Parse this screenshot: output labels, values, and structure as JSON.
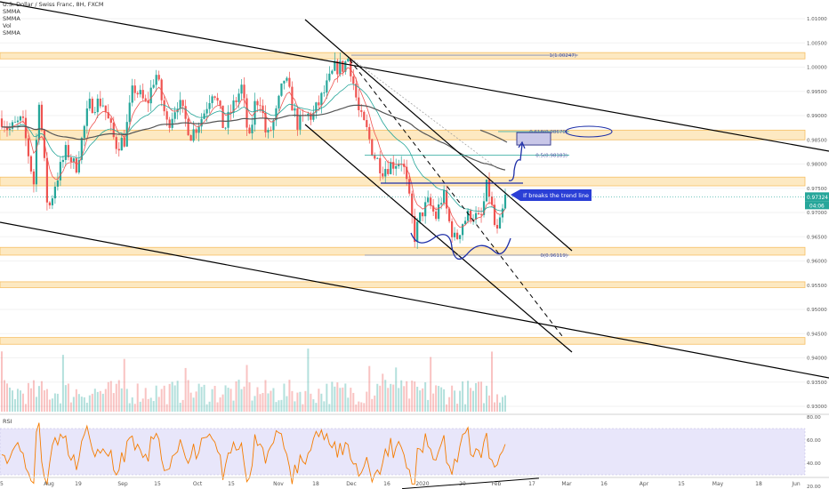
{
  "legend": {
    "title": "U.S. Dollar / Swiss Franc, 8H, FXCM",
    "indicators": [
      "SMMA",
      "SMMA",
      "Vol",
      "SMMA"
    ]
  },
  "rsi_label": "RSI",
  "annotation": {
    "text": "If breaks the trend line"
  },
  "current_price": {
    "value": "0.97324",
    "timer": "04:06"
  },
  "colors": {
    "up": "#26a69a",
    "down": "#ef5350",
    "zone_fill": "#fde6b8",
    "zone_border": "#f5b54a",
    "trendline": "#000000",
    "drawing": "#1e2fa8",
    "rsi_line": "#f57c00",
    "rsi_band": "#e8e6fa"
  },
  "chart_data": {
    "type": "candlestick",
    "symbol": "USDCHF",
    "price_axis": {
      "ticks": [
        "1.01000",
        "1.00500",
        "1.00000",
        "0.99500",
        "0.99000",
        "0.98500",
        "0.98000",
        "0.97500",
        "0.97000",
        "0.96500",
        "0.96000",
        "0.95500",
        "0.95000",
        "0.94500",
        "0.94000",
        "0.93500",
        "0.93000"
      ],
      "range": [
        0.928,
        1.012
      ]
    },
    "rsi_axis": {
      "ticks": [
        "80.00",
        "60.00",
        "40.00",
        "20.00"
      ],
      "range": [
        15,
        85
      ]
    },
    "time_axis": [
      "15",
      "Aug",
      "19",
      "Sep",
      "15",
      "Oct",
      "15",
      "Nov",
      "18",
      "Dec",
      "16",
      "2020",
      "20",
      "Feb",
      "17",
      "Mar",
      "16",
      "Apr",
      "15",
      "May",
      "18",
      "Jun"
    ],
    "fib_levels": [
      {
        "label": "1(1.00247)",
        "price": 1.00247
      },
      {
        "label": "0.618(0.98670)",
        "price": 0.9867
      },
      {
        "label": "0.5(0.98183)",
        "price": 0.98183
      },
      {
        "label": "0(0.96119)",
        "price": 0.96119
      }
    ],
    "zones": [
      [
        1.0017,
        1.003
      ],
      [
        0.985,
        0.987
      ],
      [
        0.9755,
        0.9773
      ],
      [
        0.9612,
        0.9628
      ],
      [
        0.9545,
        0.9557
      ],
      [
        0.9428,
        0.9442
      ]
    ],
    "last_price": 0.97324,
    "rsi_bands": [
      70,
      30
    ]
  }
}
